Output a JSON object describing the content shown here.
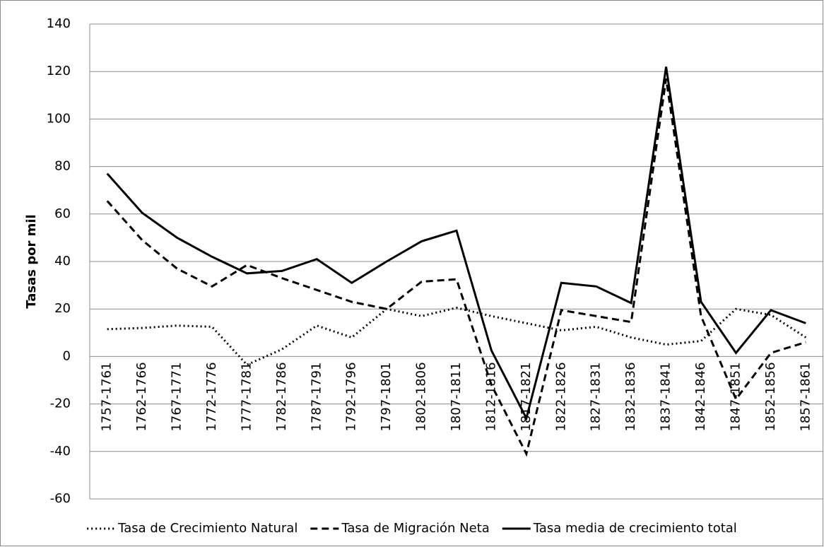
{
  "chart_data": {
    "type": "line",
    "y_axis_label": "Tasas por mil",
    "categories": [
      "1757-1761",
      "1762-1766",
      "1767-1771",
      "1772-1776",
      "1777-1781",
      "1782-1786",
      "1787-1791",
      "1792-1796",
      "1797-1801",
      "1802-1806",
      "1807-1811",
      "1812-1816",
      "1817-1821",
      "1822-1826",
      "1827-1831",
      "1832-1836",
      "1837-1841",
      "1842-1846",
      "1847-1851",
      "1852-1856",
      "1857-1861"
    ],
    "series": [
      {
        "name": "Tasa de Crecimiento Natural",
        "color": "#000000",
        "dash": "dotted",
        "values": [
          11.5,
          12,
          13,
          12.5,
          -3.5,
          3,
          13,
          8,
          20,
          17,
          20.5,
          17,
          14,
          11,
          12.5,
          8,
          5,
          6.5,
          20,
          17.5,
          8
        ]
      },
      {
        "name": "Tasa de Migración Neta",
        "color": "#000000",
        "dash": "dashed",
        "values": [
          65.5,
          49,
          37,
          29.5,
          38.5,
          33,
          28,
          23,
          20,
          31.5,
          32.5,
          -12,
          -41,
          19.5,
          17,
          14.5,
          117,
          17,
          -18,
          1.5,
          6
        ]
      },
      {
        "name": "Tasa media de crecimiento total",
        "color": "#000000",
        "dash": "solid",
        "values": [
          77,
          60.5,
          50,
          42,
          35,
          36,
          41,
          31,
          40,
          48.5,
          53,
          2.5,
          -26,
          31,
          29.5,
          22.5,
          122,
          23,
          1.5,
          19.5,
          14
        ]
      }
    ],
    "ylim": [
      -60,
      140
    ],
    "yticks": [
      -60,
      -40,
      -20,
      0,
      20,
      40,
      60,
      80,
      100,
      120,
      140
    ],
    "grid": true,
    "legend": "bottom"
  }
}
